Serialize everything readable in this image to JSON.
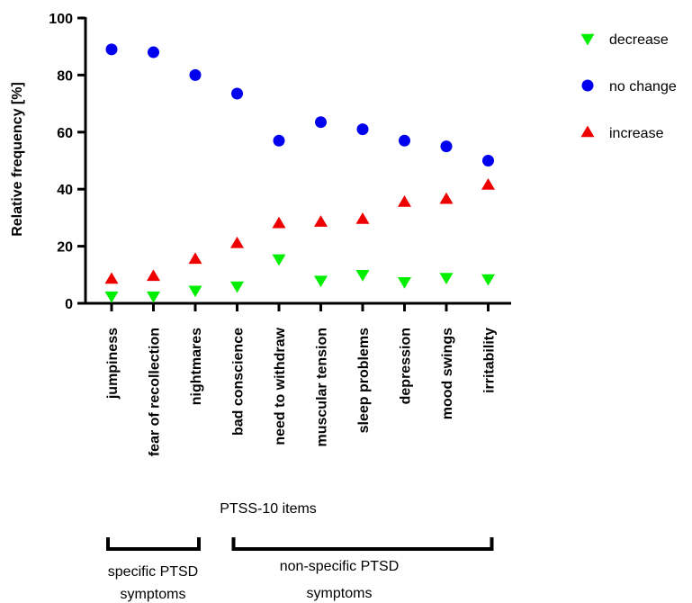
{
  "chart_data": {
    "type": "scatter",
    "ylabel": "Relative frequency [%]",
    "xlabel": "PTSS-10 items",
    "ylim": [
      0,
      100
    ],
    "yticks": [
      0,
      20,
      40,
      60,
      80,
      100
    ],
    "categories": [
      "jumpiness",
      "fear of recollection",
      "nightmares",
      "bad conscience",
      "need to withdraw",
      "muscular tension",
      "sleep problems",
      "depression",
      "mood swings",
      "irritability"
    ],
    "series": [
      {
        "name": "decrease",
        "marker": "triangle-down",
        "color": "#00ee00",
        "values": [
          2.5,
          2.5,
          4.5,
          6,
          15.5,
          8,
          10,
          7.5,
          9,
          8.5
        ]
      },
      {
        "name": "no change",
        "marker": "circle",
        "color": "#0000ee",
        "values": [
          89,
          88,
          80,
          73.5,
          57,
          63.5,
          61,
          57,
          55,
          50
        ]
      },
      {
        "name": "increase",
        "marker": "triangle-up",
        "color": "#ee0000",
        "values": [
          8.5,
          9.5,
          15.5,
          21,
          28,
          28.5,
          29.5,
          35.5,
          36.5,
          41.5
        ]
      }
    ],
    "legend_position": "top-right",
    "groups": [
      {
        "label_line1": "specific PTSD",
        "label_line2": "symptoms",
        "from": 0,
        "to": 2
      },
      {
        "label_line1": "non-specific PTSD",
        "label_line2": "symptoms",
        "from": 3,
        "to": 9
      }
    ]
  }
}
